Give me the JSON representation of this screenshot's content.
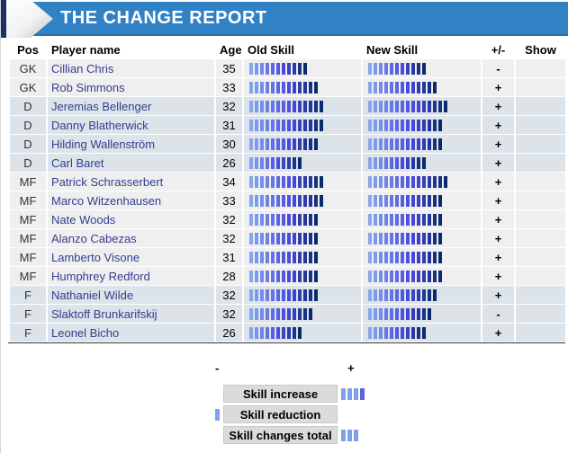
{
  "title": "THE CHANGE REPORT",
  "columns": {
    "pos": "Pos",
    "name": "Player name",
    "age": "Age",
    "old_skill": "Old Skill",
    "new_skill": "New Skill",
    "plus_minus": "+/-",
    "show": "Show"
  },
  "players": [
    {
      "pos": "GK",
      "name": "Cillian Chris",
      "age": "35",
      "old": 11,
      "new": 11,
      "change": "-"
    },
    {
      "pos": "GK",
      "name": "Rob Simmons",
      "age": "33",
      "old": 13,
      "new": 13,
      "change": "+"
    },
    {
      "pos": "D",
      "name": "Jeremias Bellenger",
      "age": "32",
      "old": 14,
      "new": 15,
      "change": "+"
    },
    {
      "pos": "D",
      "name": "Danny Blatherwick",
      "age": "31",
      "old": 14,
      "new": 14,
      "change": "+"
    },
    {
      "pos": "D",
      "name": "Hilding Wallenström",
      "age": "30",
      "old": 13,
      "new": 14,
      "change": "+"
    },
    {
      "pos": "D",
      "name": "Carl Baret",
      "age": "26",
      "old": 10,
      "new": 11,
      "change": "+"
    },
    {
      "pos": "MF",
      "name": "Patrick Schrasserbert",
      "age": "34",
      "old": 14,
      "new": 15,
      "change": "+"
    },
    {
      "pos": "MF",
      "name": "Marco Witzenhausen",
      "age": "33",
      "old": 14,
      "new": 14,
      "change": "+"
    },
    {
      "pos": "MF",
      "name": "Nate Woods",
      "age": "32",
      "old": 13,
      "new": 14,
      "change": "+"
    },
    {
      "pos": "MF",
      "name": "Alanzo Cabezas",
      "age": "32",
      "old": 13,
      "new": 14,
      "change": "+"
    },
    {
      "pos": "MF",
      "name": "Lamberto Visone",
      "age": "31",
      "old": 13,
      "new": 14,
      "change": "+"
    },
    {
      "pos": "MF",
      "name": "Humphrey Redford",
      "age": "28",
      "old": 13,
      "new": 14,
      "change": "+"
    },
    {
      "pos": "F",
      "name": "Nathaniel Wilde",
      "age": "32",
      "old": 13,
      "new": 13,
      "change": "+"
    },
    {
      "pos": "F",
      "name": "Slaktoff Brunkarifskij",
      "age": "32",
      "old": 12,
      "new": 12,
      "change": "-"
    },
    {
      "pos": "F",
      "name": "Leonel Bicho",
      "age": "26",
      "old": 10,
      "new": 11,
      "change": "+"
    }
  ],
  "legend": {
    "minus_sign": "-",
    "plus_sign": "+",
    "increase_label": "Skill increase",
    "reduction_label": "Skill reduction",
    "total_label": "Skill changes total",
    "increase_marker_colors": [
      "#7fa0ea",
      "#7fa0ea",
      "#7fa0ea",
      "#5a64df"
    ],
    "reduction_marker_colors": [
      "#7fa0ea"
    ],
    "total_marker_colors": [
      "#7fa0ea",
      "#7fa0ea",
      "#7fa0ea"
    ]
  },
  "colors": {
    "banner_blue": "#3182c4",
    "banner_edge": "#2a6fa9",
    "arrow_navy": "#1c2f6b",
    "row_light": "#efefef",
    "row_alt": "#dce3e9",
    "player_name": "#353d8f",
    "bar_gradient_stops": [
      "#86a6ec",
      "#4b4bdf",
      "#0a2a6d"
    ],
    "bar_gradient_mid": 0.58
  }
}
